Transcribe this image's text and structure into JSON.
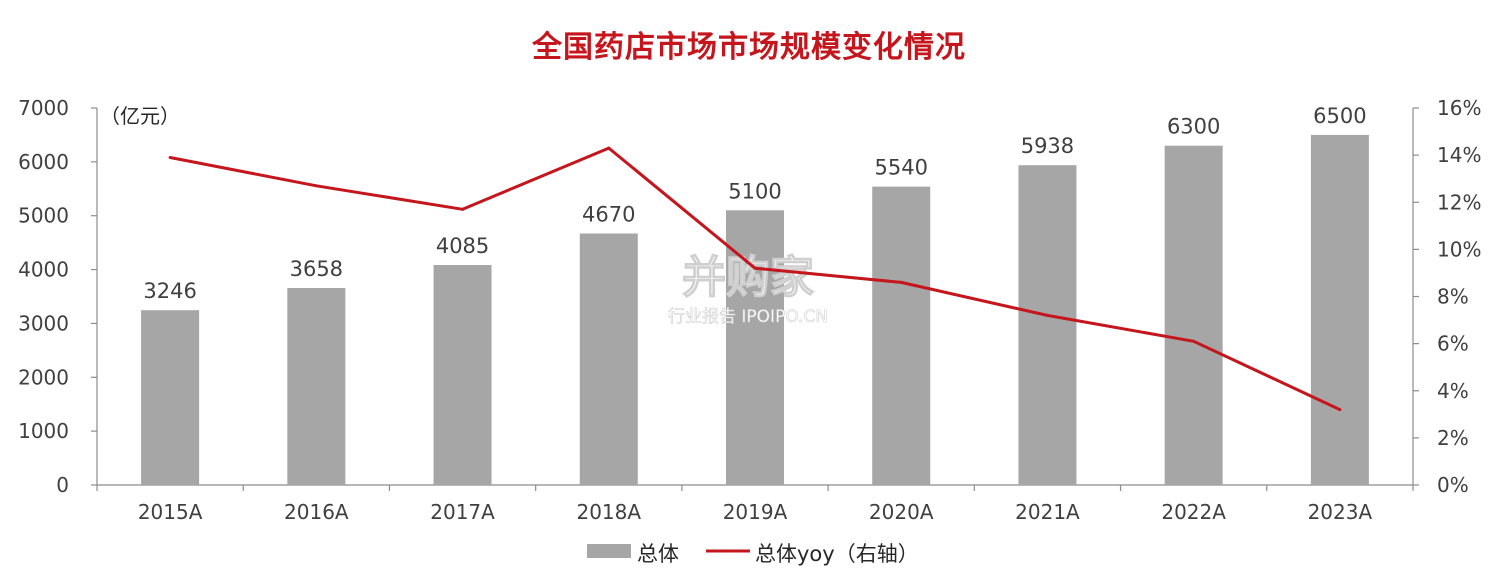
{
  "title": "全国药店市场市场规模变化情况",
  "chart_data": {
    "type": "bar",
    "categories": [
      "2015A",
      "2016A",
      "2017A",
      "2018A",
      "2019A",
      "2020A",
      "2021A",
      "2022A",
      "2023A"
    ],
    "series": [
      {
        "name": "总体",
        "type": "bar",
        "axis": "left",
        "color": "#a6a6a6",
        "values": [
          3246,
          3658,
          4085,
          4670,
          5100,
          5540,
          5938,
          6300,
          6500
        ]
      },
      {
        "name": "总体yoy（右轴）",
        "type": "line",
        "axis": "right",
        "color": "#c4161c",
        "values": [
          13.9,
          12.7,
          11.7,
          14.3,
          9.2,
          8.6,
          7.2,
          6.1,
          3.2
        ]
      }
    ],
    "y_left": {
      "unit_label": "（亿元）",
      "range": [
        0,
        7000
      ],
      "ticks": [
        "0",
        "1000",
        "2000",
        "3000",
        "4000",
        "5000",
        "6000",
        "7000"
      ]
    },
    "y_right": {
      "range": [
        0,
        16
      ],
      "ticks": [
        "0%",
        "2%",
        "4%",
        "6%",
        "8%",
        "10%",
        "12%",
        "14%",
        "16%"
      ]
    },
    "legend_position": "bottom",
    "grid": false
  },
  "watermark": {
    "main": "并购家",
    "sub": "行业报告 IPOIPO.CN"
  }
}
